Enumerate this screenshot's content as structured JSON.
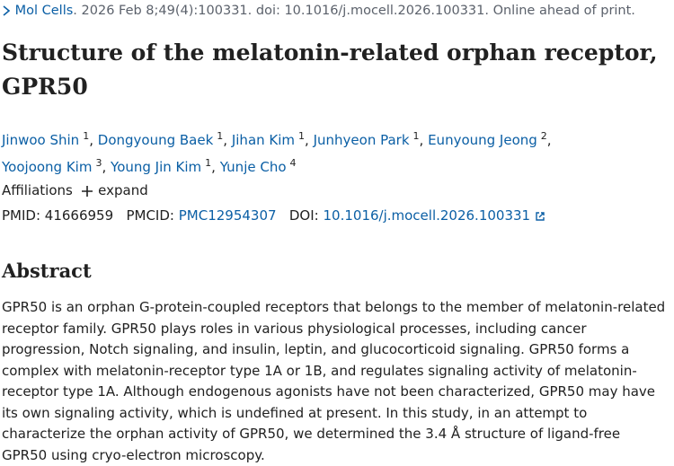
{
  "citation": {
    "journal": "Mol Cells",
    "details": ". 2026 Feb 8;49(4):100331. doi: 10.1016/j.mocell.2026.100331. Online ahead of print."
  },
  "title": "Structure of the melatonin-related orphan receptor, GPR50",
  "authors": {
    "separator": ",",
    "list": [
      {
        "name": "Jinwoo Shin",
        "affiliation": "1"
      },
      {
        "name": "Dongyoung Baek",
        "affiliation": "1"
      },
      {
        "name": "Jihan Kim",
        "affiliation": "1"
      },
      {
        "name": "Junhyeon Park",
        "affiliation": "1"
      },
      {
        "name": "Eunyoung Jeong",
        "affiliation": "2"
      },
      {
        "name": "Yoojoong Kim",
        "affiliation": "3"
      },
      {
        "name": "Young Jin Kim",
        "affiliation": "1"
      },
      {
        "name": "Yunje Cho",
        "affiliation": "4"
      }
    ]
  },
  "affiliations": {
    "label": "Affiliations",
    "toggle": "expand"
  },
  "identifiers": {
    "pmid_label": "PMID:",
    "pmid": "41666959",
    "pmcid_label": "PMCID:",
    "pmcid": "PMC12954307",
    "doi_label": "DOI:",
    "doi": "10.1016/j.mocell.2026.100331"
  },
  "abstract": {
    "heading": "Abstract",
    "text": "GPR50 is an orphan G-protein-coupled receptors that belongs to the member of melatonin-related receptor family. GPR50 plays roles in various physiological processes, including cancer progression, Notch signaling, and insulin, leptin, and glucocorticoid signaling. GPR50 forms a complex with melatonin-receptor type 1A or 1B, and regulates signaling activity of melatonin-receptor type 1A. Although endogenous agonists have not been characterized, GPR50 may have its own signaling activity, which is undefined at present. In this study, in an attempt to characterize the orphan activity of GPR50, we determined the 3.4 Å structure of ligand-free GPR50 using cryo-electron microscopy."
  }
}
